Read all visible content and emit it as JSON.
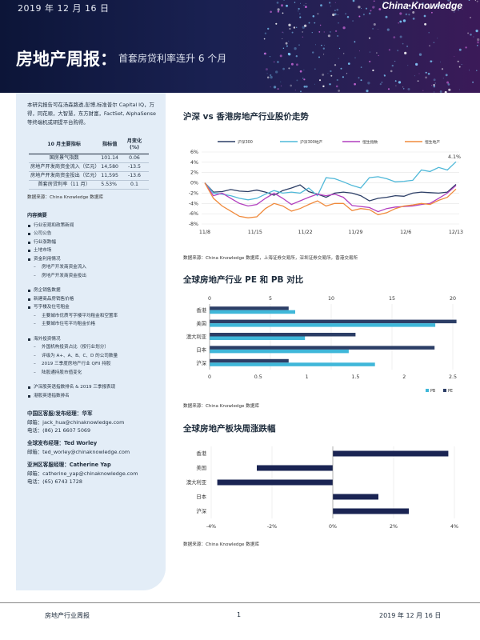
{
  "banner": {
    "date": "2019 年 12 月 16 日",
    "logo": "China Knowledge",
    "title": "房地产周报：",
    "subtitle": "首套房贷利率连升 6 个月"
  },
  "sidebar": {
    "intro": "本研究报告可在汤森路透,彭博,标准普尔 Capital IQ，万得，同花顺，大智慧，东方财富，FactSet, AlphaSense 等终端机或研提平台购得。",
    "table": {
      "headers": [
        "10 月主要指标",
        "指标值",
        "月变化 (%)"
      ],
      "rows": [
        [
          "国房景气指数",
          "101.14",
          "0.06"
        ],
        [
          "房地产开发商资金流入（亿元）",
          "14,580",
          "-13.5"
        ],
        [
          "房地产开发商资金投出（亿元）",
          "11,595",
          "-13.6"
        ],
        [
          "首套房贷利率（11 月）",
          "5.53%",
          "0.1"
        ]
      ],
      "source": "数据来源：China Knowledge 数据库"
    },
    "toc_title": "内容摘要",
    "toc_group1": [
      {
        "text": "行业宏观和政策新闻",
        "sub": false
      },
      {
        "text": "公司公告",
        "sub": false
      },
      {
        "text": "行业涨跌幅",
        "sub": false
      },
      {
        "text": "土地市场",
        "sub": false
      },
      {
        "text": "资金利用情况",
        "sub": false
      },
      {
        "text": "房地产开发商资金流入",
        "sub": true
      },
      {
        "text": "房地产开发商资金投出",
        "sub": true
      }
    ],
    "toc_group2": [
      {
        "text": "房企销售数据",
        "sub": false
      },
      {
        "text": "新建商品房销售价格",
        "sub": false
      },
      {
        "text": "写字楼及住宅租金",
        "sub": false
      },
      {
        "text": "主要城市优质写字楼平均租金和空置率",
        "sub": true
      },
      {
        "text": "主要城市住宅平均租金价格",
        "sub": true
      }
    ],
    "toc_group3": [
      {
        "text": "海外投资情况",
        "sub": false
      },
      {
        "text": "外国机构投资占比（按行业划分）",
        "sub": true
      },
      {
        "text": "评级为 A+、A、B、C、D 的公司数量",
        "sub": true
      },
      {
        "text": "2019 三季度房地产行业 QFII 持股",
        "sub": true
      },
      {
        "text": "陆股通持股市值变化",
        "sub": true
      }
    ],
    "toc_group4": [
      {
        "text": "沪深股英语指数排名 & 2019 三季报表现",
        "sub": false
      },
      {
        "text": "港股英语指数排名",
        "sub": false
      }
    ],
    "contacts": [
      {
        "head": "中国区客服/发布经理：华军",
        "lines": [
          "邮箱：jack_hua@chinaknowledge.com",
          "电话：(86) 21 6607 5069"
        ]
      },
      {
        "head": "全球发布经理：Ted Worley",
        "lines": [
          "邮箱：ted_worley@chinaknowledge.com"
        ]
      },
      {
        "head": "亚洲区客服经理：Catherine Yap",
        "lines": [
          "邮箱：catherine_yap@chinaknowledge.com",
          "电话：(65) 6743 1728"
        ]
      }
    ]
  },
  "sections": {
    "line_title": "沪深 vs 香港房地产行业股价走势",
    "line_source": "数据来源：China Knowledge 数据库，上海证券交易所，深圳证券交易所，香港交易所",
    "bar_title": "全球房地产行业 PE 和 PB 对比",
    "bar_source": "数据来源：China Knowledge 数据库",
    "hbar_title": "全球房地产板块周涨跌幅",
    "hbar_source": "数据来源：China Knowledge 数据库"
  },
  "footer": {
    "left": "房地产行业周报",
    "page": "1",
    "date": "2019 年 12 月 16 日"
  },
  "chart_data": [
    {
      "type": "line",
      "title": "沪深 vs 香港房地产行业股价走势",
      "x_ticks": [
        "11/8",
        "11/15",
        "11/22",
        "11/29",
        "12/6",
        "12/13"
      ],
      "ylim": [
        -0.08,
        0.06
      ],
      "y_ticks": [
        "6%",
        "4%",
        "2%",
        "0%",
        "-2%",
        "-4%",
        "-6%",
        "-8%"
      ],
      "annotation": "4.1%",
      "series": [
        {
          "name": "沪深300",
          "color": "#2c3e66",
          "values": [
            0,
            -0.018,
            -0.017,
            -0.013,
            -0.016,
            -0.017,
            -0.014,
            -0.018,
            -0.024,
            -0.015,
            -0.01,
            -0.004,
            -0.017,
            -0.022,
            -0.028,
            -0.02,
            -0.018,
            -0.02,
            -0.025,
            -0.035,
            -0.03,
            -0.028,
            -0.025,
            -0.026,
            -0.02,
            -0.018,
            -0.019,
            -0.02,
            -0.018,
            -0.003
          ]
        },
        {
          "name": "沪深300地产",
          "color": "#4fb8d8",
          "values": [
            0,
            -0.02,
            -0.022,
            -0.025,
            -0.03,
            -0.033,
            -0.03,
            -0.022,
            -0.015,
            -0.02,
            -0.018,
            -0.02,
            -0.01,
            -0.025,
            0.01,
            0.008,
            0.002,
            -0.005,
            -0.01,
            0.01,
            0.012,
            0.008,
            0.002,
            0.003,
            0.005,
            0.025,
            0.022,
            0.03,
            0.025,
            0.041
          ]
        },
        {
          "name": "恒生指数",
          "color": "#b13fbf",
          "values": [
            0,
            -0.025,
            -0.02,
            -0.03,
            -0.04,
            -0.045,
            -0.042,
            -0.03,
            -0.02,
            -0.03,
            -0.042,
            -0.035,
            -0.028,
            -0.022,
            -0.025,
            -0.022,
            -0.028,
            -0.044,
            -0.046,
            -0.048,
            -0.056,
            -0.05,
            -0.047,
            -0.046,
            -0.045,
            -0.042,
            -0.04,
            -0.03,
            -0.02,
            -0.005
          ]
        },
        {
          "name": "恒生地产",
          "color": "#f08a3c",
          "values": [
            0,
            -0.03,
            -0.045,
            -0.055,
            -0.065,
            -0.068,
            -0.066,
            -0.05,
            -0.04,
            -0.045,
            -0.055,
            -0.05,
            -0.042,
            -0.035,
            -0.045,
            -0.04,
            -0.04,
            -0.054,
            -0.05,
            -0.052,
            -0.062,
            -0.058,
            -0.05,
            -0.045,
            -0.043,
            -0.04,
            -0.042,
            -0.034,
            -0.028,
            -0.012
          ]
        }
      ]
    },
    {
      "type": "bar",
      "title": "全球房地产行业 PE 和 PB 对比",
      "categories": [
        "香港",
        "美国",
        "澳大利亚",
        "日本",
        "沪深"
      ],
      "pe_axis": [
        0,
        5,
        10,
        15,
        20
      ],
      "pb_axis": [
        "0",
        "0.5",
        "1",
        "1.5",
        "2",
        "2.5"
      ],
      "series": [
        {
          "name": "PE",
          "color": "#2c3e66",
          "axis": "top",
          "values": [
            6.5,
            20.3,
            12.0,
            18.5,
            6.5
          ]
        },
        {
          "name": "PB",
          "color": "#3fb7d9",
          "axis": "bottom",
          "values": [
            0.88,
            2.32,
            0.98,
            1.43,
            1.7
          ]
        }
      ]
    },
    {
      "type": "bar",
      "orientation": "horizontal",
      "title": "全球房地产板块周涨跌幅",
      "categories": [
        "香港",
        "美国",
        "澳大利亚",
        "日本",
        "沪深"
      ],
      "x_ticks": [
        "-4%",
        "-2%",
        "0%",
        "2%",
        "4%"
      ],
      "xlim": [
        -0.04,
        0.04
      ],
      "color": "#1a2453",
      "values": [
        0.038,
        -0.025,
        -0.038,
        0.015,
        0.025
      ]
    }
  ]
}
